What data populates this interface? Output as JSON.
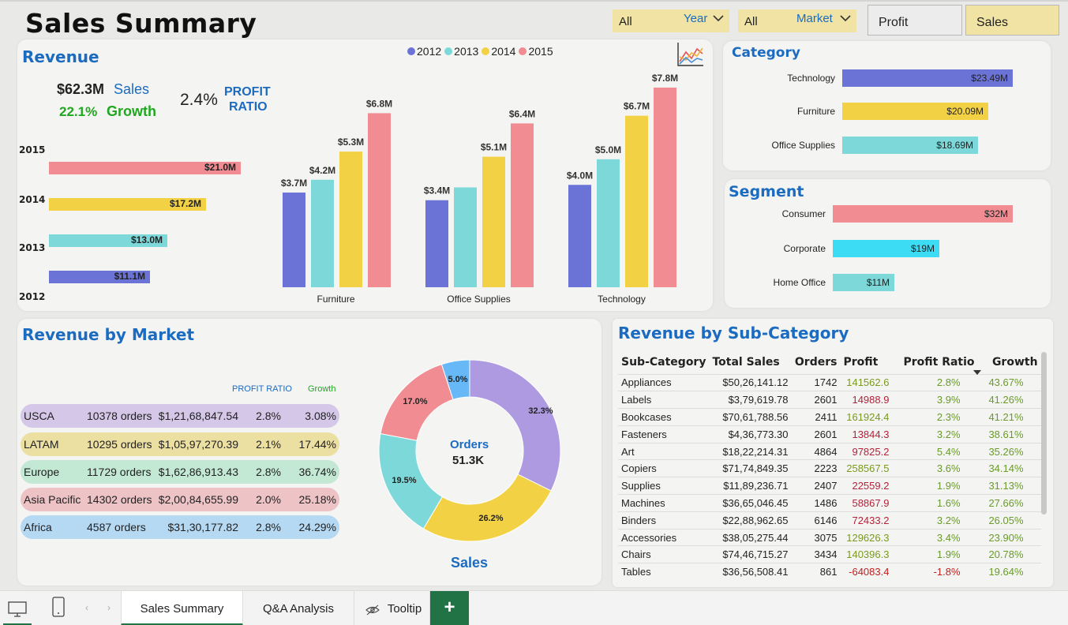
{
  "title": "Sales  Summary",
  "slicers": [
    {
      "value": "All",
      "label": "Year"
    },
    {
      "value": "All",
      "label": "Market"
    }
  ],
  "toggles": {
    "profit": "Profit",
    "sales": "Sales"
  },
  "revenue": {
    "title": "Revenue",
    "kpi_sales_value": "$62.3M",
    "kpi_sales_label": "Sales",
    "kpi_growth_value": "22.1%",
    "kpi_growth_label": "Growth",
    "kpi_ratio_value": "2.4%",
    "kpi_ratio_label_1": "PROFIT",
    "kpi_ratio_label_2": "RATIO",
    "legend": [
      {
        "name": "2012",
        "color": "#6b74d6"
      },
      {
        "name": "2013",
        "color": "#7dd9d9"
      },
      {
        "name": "2014",
        "color": "#f2d244"
      },
      {
        "name": "2015",
        "color": "#f08c92"
      }
    ],
    "yearly": [
      {
        "year": "2015",
        "label": "$21.0M",
        "value": 21.0
      },
      {
        "year": "2014",
        "label": "$17.2M",
        "value": 17.2
      },
      {
        "year": "2013",
        "label": "$13.0M",
        "value": 13.0
      },
      {
        "year": "2012",
        "label": "$11.1M",
        "value": 11.1
      }
    ],
    "chart_data": {
      "type": "bar",
      "categories": [
        "Furniture",
        "Office Supplies",
        "Technology"
      ],
      "series": [
        {
          "name": "2012",
          "values": [
            3.7,
            3.4,
            4.0
          ],
          "labels": [
            "$3.7M",
            "$3.4M",
            "$4.0M"
          ]
        },
        {
          "name": "2013",
          "values": [
            4.2,
            3.9,
            5.0
          ],
          "labels": [
            "$4.2M",
            "",
            "$5.0M"
          ]
        },
        {
          "name": "2014",
          "values": [
            5.3,
            5.1,
            6.7
          ],
          "labels": [
            "$5.3M",
            "$5.1M",
            "$6.7M"
          ]
        },
        {
          "name": "2015",
          "values": [
            6.8,
            6.4,
            7.8
          ],
          "labels": [
            "$6.8M",
            "$6.4M",
            "$7.8M"
          ]
        }
      ]
    }
  },
  "category": {
    "title": "Category",
    "items": [
      {
        "label": "Technology",
        "value": "$23.49M",
        "amount": 23.49,
        "color": "#6b74d6"
      },
      {
        "label": "Furniture",
        "value": "$20.09M",
        "amount": 20.09,
        "color": "#f2d244"
      },
      {
        "label": "Office Supplies",
        "value": "$18.69M",
        "amount": 18.69,
        "color": "#7dd9d9"
      }
    ]
  },
  "segment": {
    "title": "Segment",
    "items": [
      {
        "label": "Consumer",
        "value": "$32M",
        "amount": 32,
        "color": "#f08c92"
      },
      {
        "label": "Corporate",
        "value": "$19M",
        "amount": 19,
        "color": "#3ddcf5"
      },
      {
        "label": "Home Office",
        "value": "$11M",
        "amount": 11,
        "color": "#7dd9d9"
      }
    ]
  },
  "market": {
    "title": "Revenue by Market",
    "header_ratio": "PROFIT RATIO",
    "header_growth": "Growth",
    "rows": [
      {
        "name": "USCA",
        "orders": "10378 orders",
        "sales": "$1,21,68,847.54",
        "ratio": "2.8%",
        "growth": "3.08%",
        "color": "#d4c7e8"
      },
      {
        "name": "LATAM",
        "orders": "10295 orders",
        "sales": "$1,05,97,270.39",
        "ratio": "2.1%",
        "growth": "17.44%",
        "color": "#ecdfa2"
      },
      {
        "name": "Europe",
        "orders": "11729 orders",
        "sales": "$1,62,86,913.43",
        "ratio": "2.8%",
        "growth": "36.74%",
        "color": "#c3e9d4"
      },
      {
        "name": "Asia Pacific",
        "orders": "14302 orders",
        "sales": "$2,00,84,655.99",
        "ratio": "2.0%",
        "growth": "25.18%",
        "color": "#eec3c6"
      },
      {
        "name": "Africa",
        "orders": "4587 orders",
        "sales": "$31,30,177.82",
        "ratio": "2.8%",
        "growth": "24.29%",
        "color": "#b5d8f3"
      }
    ],
    "donut": {
      "center_label": "Orders",
      "center_value": "51.3K",
      "caption": "Sales",
      "chart_data": {
        "type": "pie",
        "slices": [
          {
            "label": "32.3%",
            "value": 32.3,
            "color": "#ad9ae0"
          },
          {
            "label": "26.2%",
            "value": 26.2,
            "color": "#f2d244"
          },
          {
            "label": "19.5%",
            "value": 19.5,
            "color": "#7dd9d9"
          },
          {
            "label": "17.0%",
            "value": 17.0,
            "color": "#f08c92"
          },
          {
            "label": "5.0%",
            "value": 5.0,
            "color": "#67b8f7"
          }
        ]
      }
    }
  },
  "subcategory": {
    "title": "Revenue by Sub-Category",
    "columns": [
      "Sub-Category",
      "Total Sales",
      "Orders",
      "Profit",
      "Profit Ratio",
      "Growth"
    ],
    "rows": [
      [
        "Appliances",
        "$50,26,141.12",
        "1742",
        "141562.6",
        "2.8%",
        "43.67%"
      ],
      [
        "Labels",
        "$3,79,619.78",
        "2601",
        "14988.9",
        "3.9%",
        "41.26%"
      ],
      [
        "Bookcases",
        "$70,61,788.56",
        "2411",
        "161924.4",
        "2.3%",
        "41.21%"
      ],
      [
        "Fasteners",
        "$4,36,773.30",
        "2601",
        "13844.3",
        "3.2%",
        "38.61%"
      ],
      [
        "Art",
        "$18,22,214.31",
        "4864",
        "97825.2",
        "5.4%",
        "35.26%"
      ],
      [
        "Copiers",
        "$71,74,849.35",
        "2223",
        "258567.5",
        "3.6%",
        "34.14%"
      ],
      [
        "Supplies",
        "$11,89,236.71",
        "2407",
        "22559.2",
        "1.9%",
        "31.13%"
      ],
      [
        "Machines",
        "$36,65,046.45",
        "1486",
        "58867.9",
        "1.6%",
        "27.66%"
      ],
      [
        "Binders",
        "$22,88,962.65",
        "6146",
        "72433.2",
        "3.2%",
        "26.05%"
      ],
      [
        "Accessories",
        "$38,05,275.44",
        "3075",
        "129626.3",
        "3.4%",
        "23.90%"
      ],
      [
        "Chairs",
        "$74,46,715.27",
        "3434",
        "140396.3",
        "1.9%",
        "20.78%"
      ],
      [
        "Tables",
        "$36,56,508.41",
        "861",
        "-64083.4",
        "-1.8%",
        "19.64%"
      ]
    ]
  },
  "tabs": [
    "Sales Summary",
    "Q&A Analysis",
    "Tooltip"
  ],
  "add_tab_icon": "plus-icon"
}
